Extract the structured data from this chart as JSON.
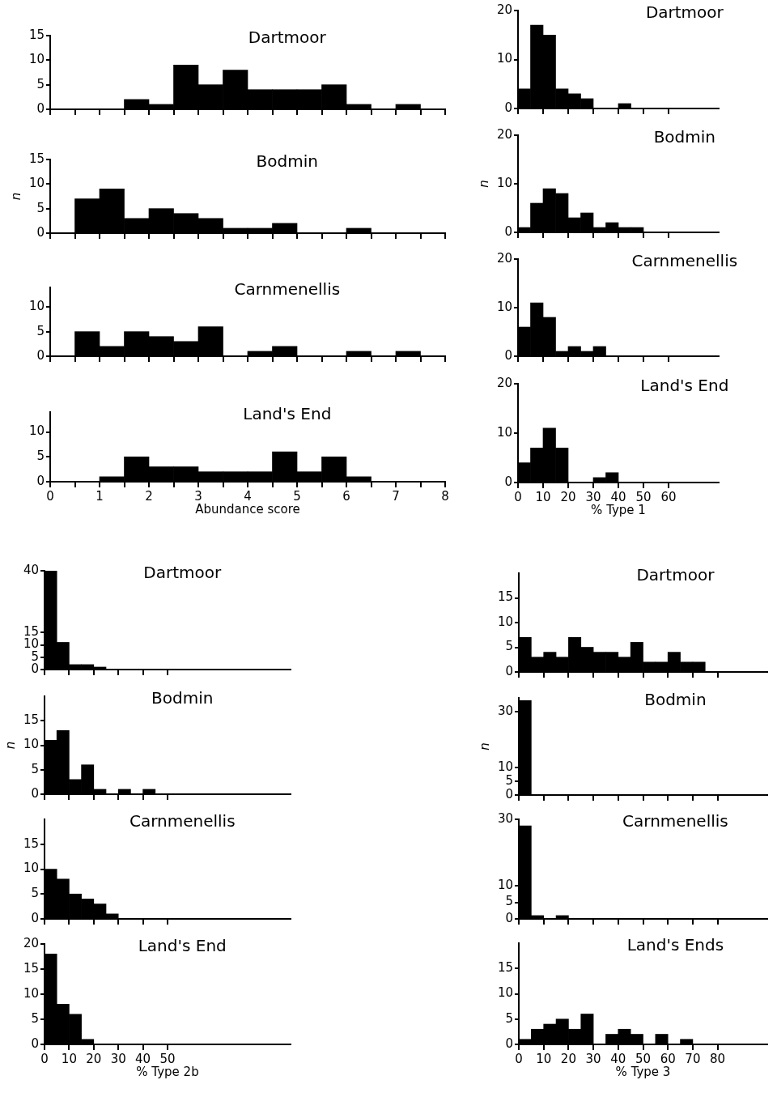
{
  "chart_data": [
    {
      "type": "histogram",
      "title": "Dartmoor",
      "color": "#000000",
      "bins": [
        0,
        0.5,
        1,
        1.5,
        2,
        2.5,
        3,
        3.5,
        4,
        4.5,
        5,
        5.5,
        6,
        6.5,
        7,
        7.5,
        8
      ],
      "values": [
        0,
        0,
        0,
        2,
        1,
        9,
        5,
        8,
        4,
        4,
        4,
        5,
        1,
        0,
        1,
        0
      ],
      "xlim": [
        0,
        8
      ],
      "xticks": [
        0,
        {
          "value": 0.5,
          "label": null
        },
        1,
        {
          "value": 1.5,
          "label": null
        },
        2,
        {
          "value": 2.5,
          "label": null
        },
        3,
        {
          "value": 3.5,
          "label": null
        },
        4,
        {
          "value": 4.5,
          "label": null
        },
        5,
        {
          "value": 5.5,
          "label": null
        },
        6,
        {
          "value": 6.5,
          "label": null
        },
        7,
        {
          "value": 7.5,
          "label": null
        },
        8
      ],
      "ylim": [
        0,
        15
      ],
      "yticks": [
        0,
        5,
        10,
        15
      ],
      "tick_labels": "y"
    },
    {
      "type": "histogram",
      "title": "Bodmin",
      "ylabel": "n",
      "color": "#000000",
      "bins": [
        0,
        0.5,
        1,
        1.5,
        2,
        2.5,
        3,
        3.5,
        4,
        4.5,
        5,
        5.5,
        6,
        6.5,
        7,
        7.5,
        8
      ],
      "values": [
        0,
        7,
        9,
        3,
        5,
        4,
        3,
        1,
        1,
        2,
        0,
        0,
        1,
        0,
        0,
        0
      ],
      "xlim": [
        0,
        8
      ],
      "xticks": [
        0,
        {
          "value": 0.5,
          "label": null
        },
        1,
        {
          "value": 1.5,
          "label": null
        },
        2,
        {
          "value": 2.5,
          "label": null
        },
        3,
        {
          "value": 3.5,
          "label": null
        },
        4,
        {
          "value": 4.5,
          "label": null
        },
        5,
        {
          "value": 5.5,
          "label": null
        },
        6,
        {
          "value": 6.5,
          "label": null
        },
        7,
        {
          "value": 7.5,
          "label": null
        },
        8
      ],
      "ylim": [
        0,
        15
      ],
      "yticks": [
        0,
        5,
        10,
        15
      ],
      "tick_labels": "y"
    },
    {
      "type": "histogram",
      "title": "Carnmenellis",
      "color": "#000000",
      "bins": [
        0,
        0.5,
        1,
        1.5,
        2,
        2.5,
        3,
        3.5,
        4,
        4.5,
        5,
        5.5,
        6,
        6.5,
        7,
        7.5,
        8
      ],
      "values": [
        0,
        5,
        2,
        5,
        4,
        3,
        6,
        0,
        1,
        2,
        0,
        0,
        1,
        0,
        1,
        0
      ],
      "xlim": [
        0,
        8
      ],
      "xticks": [
        0,
        {
          "value": 0.5,
          "label": null
        },
        1,
        {
          "value": 1.5,
          "label": null
        },
        2,
        {
          "value": 2.5,
          "label": null
        },
        3,
        {
          "value": 3.5,
          "label": null
        },
        4,
        {
          "value": 4.5,
          "label": null
        },
        5,
        {
          "value": 5.5,
          "label": null
        },
        6,
        {
          "value": 6.5,
          "label": null
        },
        7,
        {
          "value": 7.5,
          "label": null
        },
        8
      ],
      "ylim": [
        0,
        14
      ],
      "yticks": [
        0,
        5,
        10
      ],
      "tick_labels": "y"
    },
    {
      "type": "histogram",
      "title": "Land's End",
      "xlabel": "Abundance score",
      "color": "#000000",
      "bins": [
        0,
        0.5,
        1,
        1.5,
        2,
        2.5,
        3,
        3.5,
        4,
        4.5,
        5,
        5.5,
        6,
        6.5,
        7,
        7.5,
        8
      ],
      "values": [
        0,
        0,
        1,
        5,
        3,
        3,
        2,
        2,
        2,
        6,
        2,
        5,
        1,
        0,
        0,
        0
      ],
      "xlim": [
        0,
        8
      ],
      "xticks": [
        0,
        {
          "value": 0.5,
          "label": null
        },
        1,
        {
          "value": 1.5,
          "label": null
        },
        2,
        {
          "value": 2.5,
          "label": null
        },
        3,
        {
          "value": 3.5,
          "label": null
        },
        4,
        {
          "value": 4.5,
          "label": null
        },
        5,
        {
          "value": 5.5,
          "label": null
        },
        6,
        {
          "value": 6.5,
          "label": null
        },
        7,
        {
          "value": 7.5,
          "label": null
        },
        8
      ],
      "ylim": [
        0,
        14
      ],
      "yticks": [
        0,
        5,
        10
      ]
    },
    {
      "type": "histogram",
      "title": "Dartmoor",
      "color": "#000000",
      "bins": [
        0,
        5,
        10,
        15,
        20,
        25,
        30,
        35,
        40,
        45,
        50,
        55,
        60,
        65,
        70,
        75,
        80
      ],
      "values": [
        4,
        17,
        15,
        4,
        3,
        2,
        0,
        0,
        1,
        0,
        0,
        0,
        0,
        0,
        0,
        0
      ],
      "xlim": [
        0,
        80
      ],
      "xticks": [
        0,
        10,
        20,
        30,
        40,
        50,
        60
      ],
      "ylim": [
        0,
        20
      ],
      "yticks": [
        0,
        10,
        20
      ],
      "tick_labels": "y"
    },
    {
      "type": "histogram",
      "title": "Bodmin",
      "ylabel": "n",
      "color": "#000000",
      "bins": [
        0,
        5,
        10,
        15,
        20,
        25,
        30,
        35,
        40,
        45,
        50,
        55,
        60,
        65,
        70,
        75,
        80
      ],
      "values": [
        1,
        6,
        9,
        8,
        3,
        4,
        1,
        2,
        1,
        1,
        0,
        0,
        0,
        0,
        0,
        0
      ],
      "xlim": [
        0,
        80
      ],
      "xticks": [
        0,
        10,
        20,
        30,
        40,
        50,
        60
      ],
      "ylim": [
        0,
        20
      ],
      "yticks": [
        0,
        10,
        20
      ],
      "tick_labels": "y"
    },
    {
      "type": "histogram",
      "title": "Carnmenellis",
      "color": "#000000",
      "bins": [
        0,
        5,
        10,
        15,
        20,
        25,
        30,
        35,
        40,
        45,
        50,
        55,
        60,
        65,
        70,
        75,
        80
      ],
      "values": [
        6,
        11,
        8,
        1,
        2,
        1,
        2,
        0,
        0,
        0,
        0,
        0,
        0,
        0,
        0,
        0
      ],
      "xlim": [
        0,
        80
      ],
      "xticks": [
        0,
        10,
        20,
        30,
        40,
        50,
        60
      ],
      "ylim": [
        0,
        20
      ],
      "yticks": [
        0,
        10,
        20
      ],
      "tick_labels": "y"
    },
    {
      "type": "histogram",
      "title": "Land's End",
      "xlabel": "% Type 1",
      "color": "#000000",
      "bins": [
        0,
        5,
        10,
        15,
        20,
        25,
        30,
        35,
        40,
        45,
        50,
        55,
        60,
        65,
        70,
        75,
        80
      ],
      "values": [
        4,
        7,
        11,
        7,
        0,
        0,
        1,
        2,
        0,
        0,
        0,
        0,
        0,
        0,
        0,
        0
      ],
      "xlim": [
        0,
        80
      ],
      "xticks": [
        0,
        10,
        20,
        30,
        40,
        50,
        60
      ],
      "ylim": [
        0,
        20
      ],
      "yticks": [
        0,
        10,
        20
      ]
    },
    {
      "type": "histogram",
      "title": "Dartmoor",
      "color": "#000000",
      "bins": [
        0,
        5,
        10,
        15,
        20,
        25,
        30,
        35,
        40,
        45,
        50,
        55,
        60,
        65,
        70,
        75,
        80,
        85,
        90,
        95,
        100
      ],
      "values": [
        40,
        11,
        2,
        2,
        1,
        0,
        0,
        0,
        0,
        0,
        0,
        0,
        0,
        0,
        0,
        0,
        0,
        0,
        0,
        0
      ],
      "xlim": [
        0,
        100
      ],
      "xticks": [
        0,
        10,
        20,
        30,
        40,
        50
      ],
      "ylim": [
        0,
        40
      ],
      "yticks": [
        0,
        5,
        10,
        15,
        40
      ],
      "tick_labels": "y"
    },
    {
      "type": "histogram",
      "title": "Bodmin",
      "ylabel": "n",
      "color": "#000000",
      "bins": [
        0,
        5,
        10,
        15,
        20,
        25,
        30,
        35,
        40,
        45,
        50,
        55,
        60,
        65,
        70,
        75,
        80,
        85,
        90,
        95,
        100
      ],
      "values": [
        11,
        13,
        3,
        6,
        1,
        0,
        1,
        0,
        1,
        0,
        0,
        0,
        0,
        0,
        0,
        0,
        0,
        0,
        0,
        0
      ],
      "xlim": [
        0,
        100
      ],
      "xticks": [
        0,
        10,
        20,
        30,
        40,
        50
      ],
      "ylim": [
        0,
        20
      ],
      "yticks": [
        0,
        5,
        10,
        15
      ],
      "tick_labels": "y"
    },
    {
      "type": "histogram",
      "title": "Carnmenellis",
      "color": "#000000",
      "bins": [
        0,
        5,
        10,
        15,
        20,
        25,
        30,
        35,
        40,
        45,
        50,
        55,
        60,
        65,
        70,
        75,
        80,
        85,
        90,
        95,
        100
      ],
      "values": [
        10,
        8,
        5,
        4,
        3,
        1,
        0,
        0,
        0,
        0,
        0,
        0,
        0,
        0,
        0,
        0,
        0,
        0,
        0,
        0
      ],
      "xlim": [
        0,
        100
      ],
      "xticks": [
        0,
        10,
        20,
        30,
        40,
        50
      ],
      "ylim": [
        0,
        20
      ],
      "yticks": [
        0,
        5,
        10,
        15
      ],
      "tick_labels": "y"
    },
    {
      "type": "histogram",
      "title": "Land's End",
      "xlabel": "% Type 2b",
      "color": "#000000",
      "bins": [
        0,
        5,
        10,
        15,
        20,
        25,
        30,
        35,
        40,
        45,
        50,
        55,
        60,
        65,
        70,
        75,
        80,
        85,
        90,
        95,
        100
      ],
      "values": [
        18,
        8,
        6,
        1,
        0,
        0,
        0,
        0,
        0,
        0,
        0,
        0,
        0,
        0,
        0,
        0,
        0,
        0,
        0,
        0
      ],
      "xlim": [
        0,
        100
      ],
      "xticks": [
        0,
        10,
        20,
        30,
        40,
        50
      ],
      "ylim": [
        0,
        20
      ],
      "yticks": [
        0,
        5,
        10,
        15,
        20
      ]
    },
    {
      "type": "histogram",
      "title": "Dartmoor",
      "color": "#000000",
      "bins": [
        0,
        5,
        10,
        15,
        20,
        25,
        30,
        35,
        40,
        45,
        50,
        55,
        60,
        65,
        70,
        75,
        80,
        85,
        90,
        95,
        100
      ],
      "values": [
        7,
        3,
        4,
        3,
        7,
        5,
        4,
        4,
        3,
        6,
        2,
        2,
        4,
        2,
        2,
        0,
        0,
        0,
        0,
        0
      ],
      "xlim": [
        0,
        100
      ],
      "xticks": [
        0,
        10,
        20,
        30,
        40,
        50,
        60,
        70,
        80
      ],
      "ylim": [
        0,
        20
      ],
      "yticks": [
        0,
        5,
        10,
        15
      ],
      "tick_labels": "y"
    },
    {
      "type": "histogram",
      "title": "Bodmin",
      "ylabel": "n",
      "color": "#000000",
      "bins": [
        0,
        5,
        10,
        15,
        20,
        25,
        30,
        35,
        40,
        45,
        50,
        55,
        60,
        65,
        70,
        75,
        80,
        85,
        90,
        95,
        100
      ],
      "values": [
        34,
        0,
        0,
        0,
        0,
        0,
        0,
        0,
        0,
        0,
        0,
        0,
        0,
        0,
        0,
        0,
        0,
        0,
        0,
        0
      ],
      "xlim": [
        0,
        100
      ],
      "xticks": [
        0,
        10,
        20,
        30,
        40,
        50,
        60,
        70,
        80
      ],
      "ylim": [
        0,
        35
      ],
      "yticks": [
        0,
        5,
        10,
        30
      ],
      "tick_labels": "y"
    },
    {
      "type": "histogram",
      "title": "Carnmenellis",
      "color": "#000000",
      "bins": [
        0,
        5,
        10,
        15,
        20,
        25,
        30,
        35,
        40,
        45,
        50,
        55,
        60,
        65,
        70,
        75,
        80,
        85,
        90,
        95,
        100
      ],
      "values": [
        28,
        1,
        0,
        1,
        0,
        0,
        0,
        0,
        0,
        0,
        0,
        0,
        0,
        0,
        0,
        0,
        0,
        0,
        0,
        0
      ],
      "xlim": [
        0,
        100
      ],
      "xticks": [
        0,
        10,
        20,
        30,
        40,
        50,
        60,
        70,
        80
      ],
      "ylim": [
        0,
        30
      ],
      "yticks": [
        0,
        5,
        10,
        30
      ],
      "tick_labels": "y"
    },
    {
      "type": "histogram",
      "title": "Land's Ends",
      "xlabel": "% Type 3",
      "color": "#000000",
      "bins": [
        0,
        5,
        10,
        15,
        20,
        25,
        30,
        35,
        40,
        45,
        50,
        55,
        60,
        65,
        70,
        75,
        80,
        85,
        90,
        95,
        100
      ],
      "values": [
        1,
        3,
        4,
        5,
        3,
        6,
        0,
        2,
        3,
        2,
        0,
        2,
        0,
        1,
        0,
        0,
        0,
        0,
        0,
        0
      ],
      "xlim": [
        0,
        100
      ],
      "xticks": [
        0,
        10,
        20,
        30,
        40,
        50,
        60,
        70,
        80
      ],
      "ylim": [
        0,
        20
      ],
      "yticks": [
        0,
        5,
        10,
        15
      ]
    }
  ]
}
